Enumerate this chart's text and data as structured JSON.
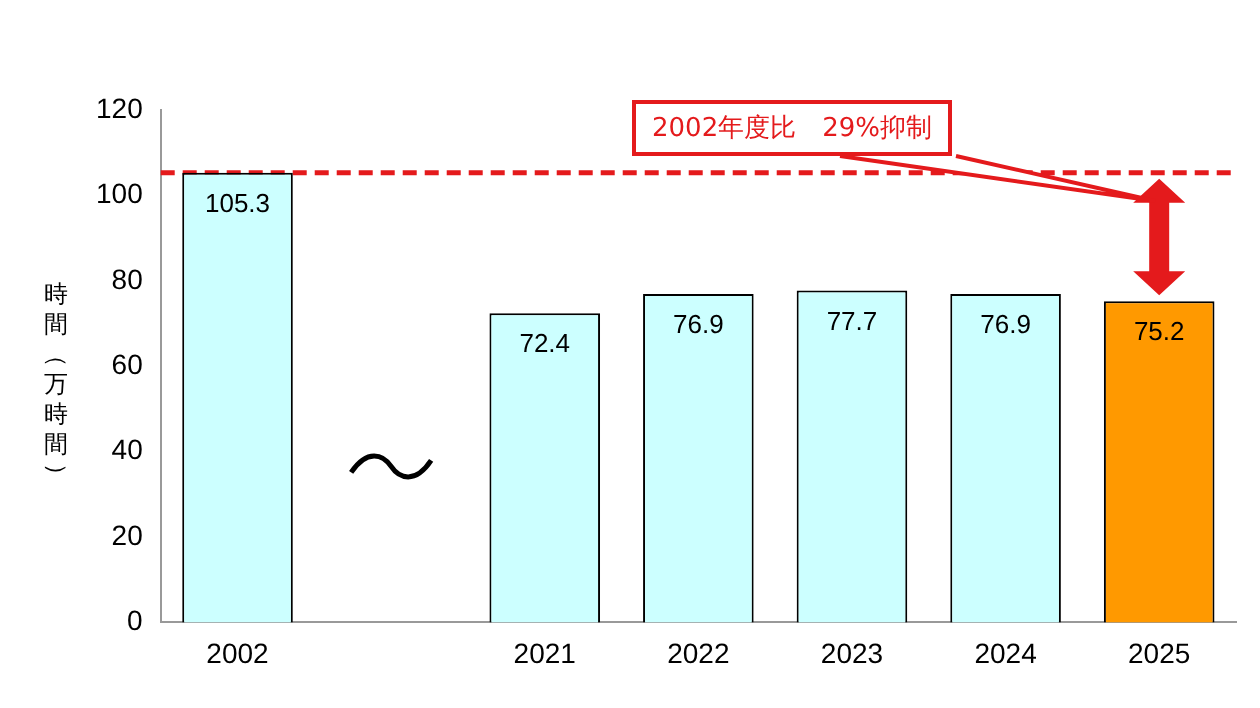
{
  "chart_data": {
    "type": "bar",
    "ylabel": "時間（万時間）",
    "categories": [
      "2002",
      null,
      "2021",
      "2022",
      "2023",
      "2024",
      "2025"
    ],
    "values": [
      105.3,
      null,
      72.4,
      76.9,
      77.7,
      76.9,
      75.2
    ],
    "colors": [
      "#ccffff",
      null,
      "#ccffff",
      "#ccffff",
      "#ccffff",
      "#ccffff",
      "#ff9900"
    ],
    "ylim": [
      0,
      120
    ],
    "yticks": [
      0,
      20,
      40,
      60,
      80,
      100,
      120
    ],
    "grid": false,
    "legend": false,
    "data_labels": true,
    "ref_lines": [
      {
        "axis": "y",
        "value": 105.3,
        "color": "#e41a1c",
        "line_style": "dashed"
      }
    ],
    "annotations": [
      "2002年度比　29%抑制"
    ]
  }
}
